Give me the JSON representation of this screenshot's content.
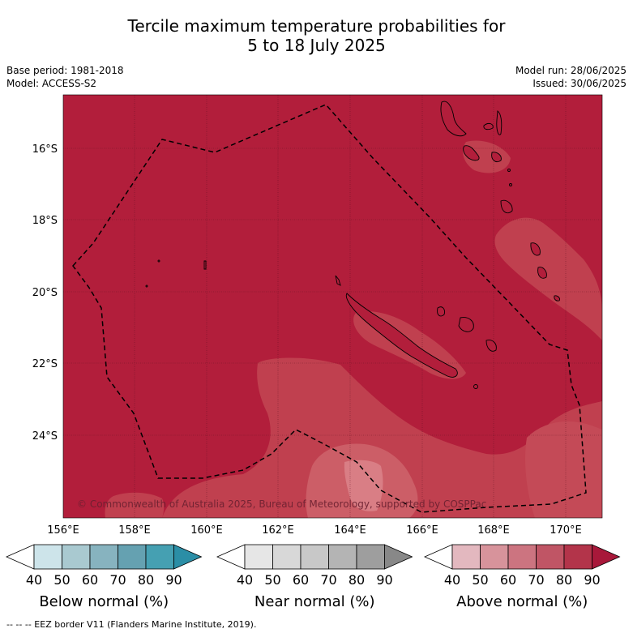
{
  "title_line1": "Tercile maximum temperature probabilities for",
  "title_line2": "5 to 18 July 2025",
  "meta": {
    "base_period": "Base period: 1981-2018",
    "model": "Model: ACCESS-S2",
    "model_run": "Model run: 28/06/2025",
    "issued": "Issued: 30/06/2025"
  },
  "map": {
    "lon_labels": [
      "156°E",
      "158°E",
      "160°E",
      "162°E",
      "164°E",
      "166°E",
      "168°E",
      "170°E"
    ],
    "lat_labels": [
      "16°S",
      "18°S",
      "20°S",
      "22°S",
      "24°S"
    ],
    "copyright": "© Commonwealth of Australia 2025, Bureau of Meteorology, supported by COSPPac",
    "base_color": "#b21e3b",
    "light_shade_color": "#c0404f",
    "lighter_shade_color": "#cc5e67"
  },
  "legends": [
    {
      "label": "Below normal (%)",
      "ticks": [
        "40",
        "50",
        "60",
        "70",
        "80",
        "90"
      ],
      "colors": [
        "#ffffff",
        "#cde4ea",
        "#a9c9d0",
        "#87b3bf",
        "#65a1b1",
        "#45a0b2",
        "#2b8ea6"
      ]
    },
    {
      "label": "Near normal (%)",
      "ticks": [
        "40",
        "50",
        "60",
        "70",
        "80",
        "90"
      ],
      "colors": [
        "#ffffff",
        "#e6e6e6",
        "#d8d8d8",
        "#c8c8c8",
        "#b4b4b4",
        "#9e9e9e",
        "#888888"
      ]
    },
    {
      "label": "Above normal (%)",
      "ticks": [
        "40",
        "50",
        "60",
        "70",
        "80",
        "90"
      ],
      "colors": [
        "#ffffff",
        "#e3b8bf",
        "#d7939b",
        "#cc7480",
        "#c05565",
        "#b3344a",
        "#a8183a"
      ]
    }
  ],
  "footer": "--  --  -- EEZ border V11 (Flanders Marine Institute, 2019)."
}
